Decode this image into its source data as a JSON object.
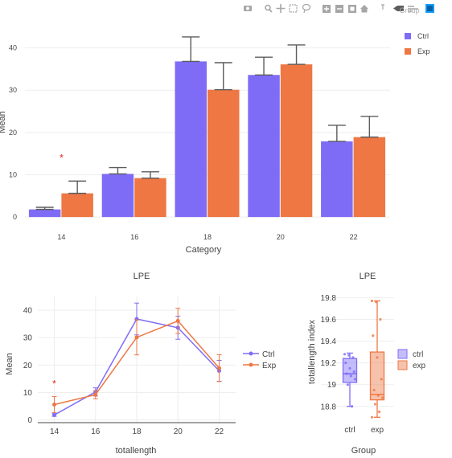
{
  "toolbar": {
    "icons": [
      "camera-icon",
      "zoom-icon",
      "pan-icon",
      "box-select-icon",
      "lasso-icon",
      "zoom-in-icon",
      "zoom-out-icon",
      "autoscale-icon",
      "reset-icon",
      "spike-icon",
      "hover-closest-icon",
      "hover-compare-icon",
      "plotly-logo"
    ]
  },
  "colors": {
    "ctrl": "#7f6cf6",
    "exp": "#ee7744",
    "marker": "#e8271c",
    "error": "#5c5c5c"
  },
  "chart_data": [
    {
      "type": "bar",
      "title": "",
      "xlabel": "Category",
      "ylabel": "Mean",
      "categories": [
        "14",
        "16",
        "18",
        "20",
        "22"
      ],
      "ylim": [
        -1.5,
        46
      ],
      "yticks": [
        "0",
        "10",
        "20",
        "30",
        "40"
      ],
      "series": [
        {
          "name": "Ctrl",
          "values": [
            1.8,
            10.2,
            36.8,
            33.6,
            17.9
          ],
          "error": [
            0.5,
            1.5,
            5.8,
            4.2,
            3.8
          ]
        },
        {
          "name": "Exp",
          "values": [
            5.6,
            9.2,
            30.1,
            36.1,
            18.9
          ],
          "error": [
            2.9,
            1.5,
            6.4,
            4.6,
            4.9
          ]
        }
      ],
      "annotations": [
        {
          "category": "14",
          "y": 14.2,
          "text": "*"
        }
      ],
      "legend": "right",
      "legend_title": "Group"
    },
    {
      "type": "line",
      "title": "LPE",
      "xlabel": "totallength",
      "ylabel": "Mean",
      "x": [
        14,
        16,
        18,
        20,
        22
      ],
      "xlim": [
        13.2,
        22.8
      ],
      "ylim": [
        -1,
        45
      ],
      "yticks": [
        "0",
        "10",
        "20",
        "30",
        "40"
      ],
      "series": [
        {
          "name": "Ctrl",
          "values": [
            1.8,
            10.2,
            36.8,
            33.6,
            17.9
          ],
          "error": [
            0.5,
            1.5,
            5.8,
            4.2,
            3.8
          ]
        },
        {
          "name": "Exp",
          "values": [
            5.6,
            9.2,
            30.1,
            36.1,
            18.9
          ],
          "error": [
            2.9,
            1.5,
            6.4,
            4.6,
            4.9
          ]
        }
      ],
      "annotations": [
        {
          "x": 14,
          "y": 13.5,
          "text": "*"
        }
      ],
      "legend": "right"
    },
    {
      "type": "box",
      "title": "LPE",
      "xlabel": "Group",
      "ylabel": "totallength index",
      "categories": [
        "ctrl",
        "exp"
      ],
      "ylim": [
        18.68,
        19.84
      ],
      "yticks": [
        "18.8",
        "19",
        "19.2",
        "19.4",
        "19.6",
        "19.8"
      ],
      "series": [
        {
          "name": "ctrl",
          "min": 18.8,
          "q1": 19.02,
          "median": 19.1,
          "q3": 19.24,
          "max": 19.29,
          "points": [
            19.28,
            19.27,
            19.25,
            19.2,
            19.15,
            19.12,
            19.1,
            19.08,
            19.05,
            19.0,
            18.8
          ]
        },
        {
          "name": "exp",
          "min": 18.7,
          "q1": 18.86,
          "median": 18.91,
          "q3": 19.3,
          "max": 19.77,
          "points": [
            19.77,
            19.76,
            19.6,
            19.45,
            19.25,
            19.05,
            18.95,
            18.9,
            18.88,
            18.82,
            18.75,
            18.7
          ]
        }
      ],
      "legend": "right"
    }
  ]
}
